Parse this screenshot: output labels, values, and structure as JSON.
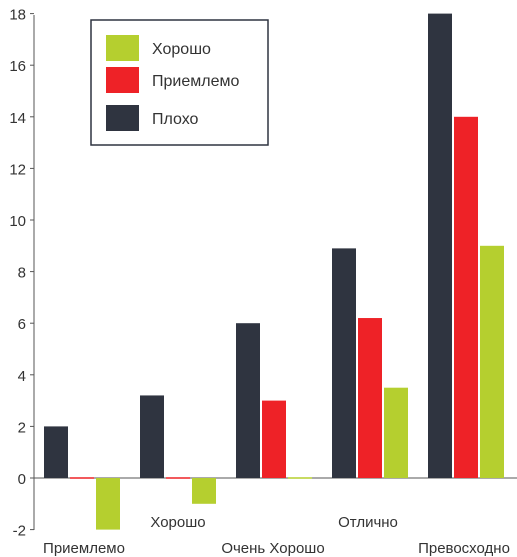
{
  "chart_data": {
    "type": "bar",
    "title": "",
    "xlabel": "",
    "ylabel": "",
    "categories": [
      "Приемлемо",
      "Хорошо",
      "Очень Хорошо",
      "Отлично",
      "Превосходно"
    ],
    "series": [
      {
        "name": "Плохо",
        "color": "#2f3440",
        "values": [
          2,
          3.2,
          6,
          8.9,
          18
        ]
      },
      {
        "name": "Приемлемо",
        "color": "#ee2227",
        "values": [
          0,
          0,
          3,
          6.2,
          14
        ]
      },
      {
        "name": "Хорошо",
        "color": "#b5cf2f",
        "values": [
          -2,
          -1,
          0,
          3.5,
          9
        ]
      }
    ],
    "ylim": [
      -2,
      18
    ],
    "yticks": [
      -2,
      0,
      2,
      4,
      6,
      8,
      10,
      12,
      14,
      16,
      18
    ],
    "legend": {
      "placement": "top-left",
      "entries": [
        {
          "label": "Хорошо",
          "color": "#b5cf2f"
        },
        {
          "label": "Приемлемо",
          "color": "#ee2227"
        },
        {
          "label": "Плохо",
          "color": "#2f3440"
        }
      ]
    },
    "grid": false
  }
}
